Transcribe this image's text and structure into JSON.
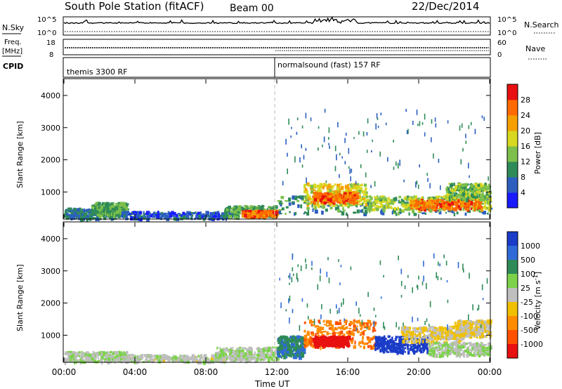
{
  "header": {
    "station": "South Pole Station (fitACF)",
    "beam": "Beam 00",
    "date": "22/Dec/2014"
  },
  "summary_panels": {
    "nsky": {
      "label": "N.Sky",
      "ticks": [
        "10^5",
        "10^0"
      ]
    },
    "nsearch": {
      "label": "N.Search",
      "ticks": [
        "10^5",
        "10^0"
      ]
    },
    "freq": {
      "label_line1": "Freq.",
      "label_line2": "[MHz]",
      "ticks": [
        "18",
        "8"
      ]
    },
    "nave": {
      "label": "Nave",
      "ticks": [
        "60",
        "0"
      ]
    },
    "cpid": {
      "label": "CPID",
      "segments": [
        "themis 3300 RF",
        "normalsound (fast) 157 RF"
      ]
    }
  },
  "x_axis": {
    "label": "Time UT",
    "ticks": [
      "00:00",
      "04:00",
      "08:00",
      "12:00",
      "16:00",
      "20:00",
      "00:00"
    ]
  },
  "colorbars": {
    "power": {
      "label": "Power [dB]",
      "tick_labels": [
        "28",
        "24",
        "20",
        "16",
        "12",
        "8",
        "4"
      ],
      "colors": [
        "#1a1aff",
        "#2c5fbf",
        "#2e8b57",
        "#7cbf4a",
        "#d8d820",
        "#f5a000",
        "#ff6a00",
        "#e81010"
      ]
    },
    "velocity": {
      "label": "Velocity [m s",
      "label_sup": "-1",
      "label_end": "]",
      "tick_labels": [
        "1000",
        "500",
        "100",
        "25",
        "-25",
        "-100",
        "-500",
        "-1000"
      ],
      "colors": [
        "#1a3cc8",
        "#2f6ad8",
        "#2e8b57",
        "#7cd34a",
        "#bfbfbf",
        "#f0c000",
        "#ff8c00",
        "#ff5000",
        "#e81010"
      ]
    }
  },
  "chart_data": [
    {
      "type": "heatmap",
      "title": "Power",
      "ylabel": "Slant Range [km]",
      "xlabel": "Time UT",
      "xlim": [
        0,
        24
      ],
      "ylim": [
        180,
        4500
      ],
      "y_ticks": [
        "1000",
        "2000",
        "3000",
        "4000"
      ],
      "colorbar_label": "Power [dB]",
      "color_range": [
        0,
        32
      ],
      "regions": [
        {
          "t0": 0.0,
          "t1": 3.2,
          "r0": 200,
          "r1": 520,
          "value": 8
        },
        {
          "t0": 1.5,
          "t1": 3.5,
          "r0": 300,
          "r1": 700,
          "value": 12
        },
        {
          "t0": 3.2,
          "t1": 9.5,
          "r0": 200,
          "r1": 420,
          "value": 6
        },
        {
          "t0": 9.0,
          "t1": 12.0,
          "r0": 250,
          "r1": 600,
          "value": 12
        },
        {
          "t0": 10.0,
          "t1": 12.0,
          "r0": 280,
          "r1": 450,
          "value": 26
        },
        {
          "t0": 12.0,
          "t1": 24.0,
          "r0": 350,
          "r1": 900,
          "value": 10
        },
        {
          "t0": 13.5,
          "t1": 17.0,
          "r0": 600,
          "r1": 1300,
          "value": 18
        },
        {
          "t0": 14.0,
          "t1": 16.5,
          "r0": 700,
          "r1": 1000,
          "value": 26
        },
        {
          "t0": 17.0,
          "t1": 24.0,
          "r0": 450,
          "r1": 900,
          "value": 16
        },
        {
          "t0": 19.5,
          "t1": 23.5,
          "r0": 500,
          "r1": 800,
          "value": 26
        },
        {
          "t0": 21.5,
          "t1": 24.0,
          "r0": 800,
          "r1": 1300,
          "value": 14
        },
        {
          "t0": 12.0,
          "t1": 24.0,
          "r0": 1200,
          "r1": 3600,
          "value": 8,
          "sparse": true
        }
      ]
    },
    {
      "type": "heatmap",
      "title": "Velocity",
      "ylabel": "Slant Range [km]",
      "xlabel": "Time UT",
      "xlim": [
        0,
        24
      ],
      "ylim": [
        180,
        4500
      ],
      "y_ticks": [
        "1000",
        "2000",
        "3000",
        "4000"
      ],
      "colorbar_label": "Velocity [m s-1]",
      "color_range": [
        -1000,
        1000
      ],
      "regions": [
        {
          "t0": 0.0,
          "t1": 3.5,
          "r0": 200,
          "r1": 520,
          "value": 100
        },
        {
          "t0": 3.5,
          "t1": 9.0,
          "r0": 200,
          "r1": 420,
          "value": 25
        },
        {
          "t0": 8.5,
          "t1": 12.0,
          "r0": 250,
          "r1": 650,
          "value": 100
        },
        {
          "t0": 12.0,
          "t1": 13.5,
          "r0": 350,
          "r1": 1000,
          "value": 500
        },
        {
          "t0": 13.5,
          "t1": 17.5,
          "r0": 650,
          "r1": 1500,
          "value": -500
        },
        {
          "t0": 14.0,
          "t1": 16.0,
          "r0": 700,
          "r1": 1000,
          "value": -1000
        },
        {
          "t0": 17.5,
          "t1": 20.5,
          "r0": 500,
          "r1": 1000,
          "value": 1000
        },
        {
          "t0": 19.0,
          "t1": 22.5,
          "r0": 800,
          "r1": 1300,
          "value": -100
        },
        {
          "t0": 20.5,
          "t1": 24.0,
          "r0": 400,
          "r1": 800,
          "value": 100
        },
        {
          "t0": 22.0,
          "t1": 24.0,
          "r0": 1000,
          "r1": 1500,
          "value": -100
        },
        {
          "t0": 12.0,
          "t1": 24.0,
          "r0": 1200,
          "r1": 3600,
          "value": 500,
          "sparse": true
        }
      ]
    }
  ]
}
